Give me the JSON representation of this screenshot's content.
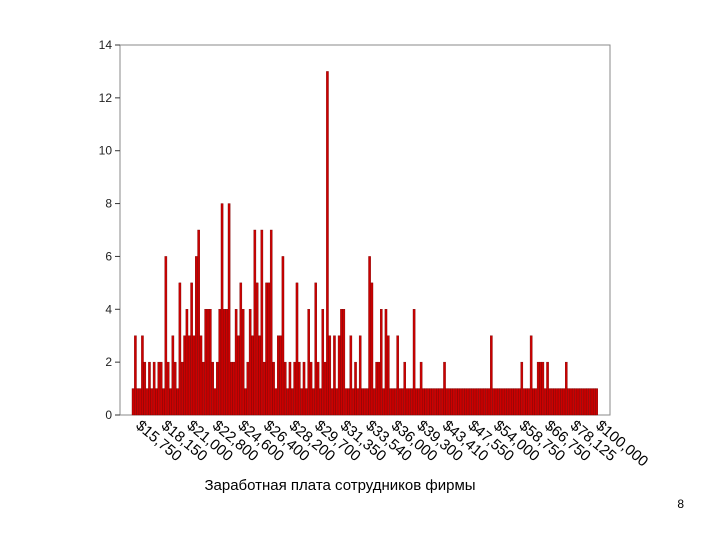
{
  "chart_data": {
    "type": "bar",
    "title": "",
    "xlabel": "Заработная плата сотрудников фирмы",
    "ylabel": "",
    "ylim": [
      0,
      14
    ],
    "yticks": [
      0,
      2,
      4,
      6,
      8,
      10,
      12,
      14
    ],
    "bar_color": "#cc0000",
    "bar_edge_color": "#7a0000",
    "tick_labels": [
      "$15,750",
      "$18,150",
      "$21,000",
      "$22,800",
      "$24,600",
      "$26,400",
      "$28,200",
      "$29,700",
      "$31,350",
      "$33,540",
      "$36,000",
      "$39,300",
      "$43,410",
      "$47,550",
      "$54,000",
      "$58,750",
      "$66,750",
      "$78,125",
      "$100,000"
    ],
    "values": [
      1,
      3,
      1,
      1,
      3,
      2,
      1,
      2,
      1,
      2,
      1,
      2,
      2,
      1,
      6,
      2,
      1,
      3,
      2,
      1,
      5,
      2,
      3,
      4,
      3,
      5,
      3,
      6,
      7,
      3,
      2,
      4,
      4,
      4,
      2,
      1,
      2,
      4,
      8,
      4,
      4,
      8,
      2,
      2,
      4,
      3,
      5,
      4,
      1,
      2,
      4,
      3,
      7,
      5,
      3,
      7,
      2,
      5,
      5,
      7,
      2,
      1,
      3,
      3,
      6,
      2,
      1,
      2,
      1,
      2,
      5,
      2,
      1,
      2,
      1,
      4,
      2,
      1,
      5,
      2,
      1,
      4,
      2,
      13,
      3,
      1,
      3,
      1,
      3,
      4,
      4,
      1,
      1,
      3,
      1,
      2,
      1,
      3,
      1,
      1,
      1,
      6,
      5,
      1,
      2,
      2,
      4,
      1,
      4,
      3,
      1,
      1,
      1,
      3,
      1,
      1,
      2,
      1,
      1,
      1,
      4,
      1,
      1,
      2,
      1,
      1,
      1,
      1,
      1,
      1,
      1,
      1,
      1,
      2,
      1,
      1,
      1,
      1,
      1,
      1,
      1,
      1,
      1,
      1,
      1,
      1,
      1,
      1,
      1,
      1,
      1,
      1,
      1,
      3,
      1,
      1,
      1,
      1,
      1,
      1,
      1,
      1,
      1,
      1,
      1,
      1,
      2,
      1,
      1,
      1,
      3,
      1,
      1,
      2,
      2,
      2,
      1,
      2,
      1,
      1,
      1,
      1,
      1,
      1,
      1,
      2,
      1,
      1,
      1,
      1,
      1,
      1,
      1,
      1,
      1,
      1,
      1,
      1,
      1
    ],
    "grid": false,
    "legend": "none"
  },
  "page_number": "8"
}
